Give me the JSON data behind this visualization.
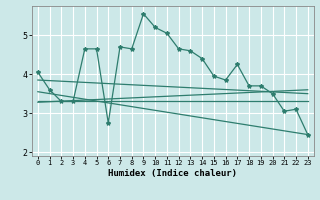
{
  "title": "",
  "xlabel": "Humidex (Indice chaleur)",
  "bg_color": "#cce8e8",
  "grid_color": "#ffffff",
  "line_color": "#2e7d6e",
  "xlim": [
    -0.5,
    23.5
  ],
  "ylim": [
    1.9,
    5.75
  ],
  "yticks": [
    2,
    3,
    4,
    5
  ],
  "xticks": [
    0,
    1,
    2,
    3,
    4,
    5,
    6,
    7,
    8,
    9,
    10,
    11,
    12,
    13,
    14,
    15,
    16,
    17,
    18,
    19,
    20,
    21,
    22,
    23
  ],
  "series1_y": [
    4.05,
    3.6,
    3.3,
    3.3,
    4.65,
    4.65,
    2.75,
    4.7,
    4.65,
    5.55,
    5.2,
    5.05,
    4.65,
    4.6,
    4.4,
    3.95,
    3.85,
    4.25,
    3.7,
    3.7,
    3.5,
    3.05,
    3.1,
    2.45
  ],
  "flat_line_y": 3.3,
  "trend_up_start": 3.28,
  "trend_up_end": 3.6,
  "trend_mid_start": 3.85,
  "trend_mid_end": 3.5,
  "trend_down_start": 3.55,
  "trend_down_end": 2.45
}
